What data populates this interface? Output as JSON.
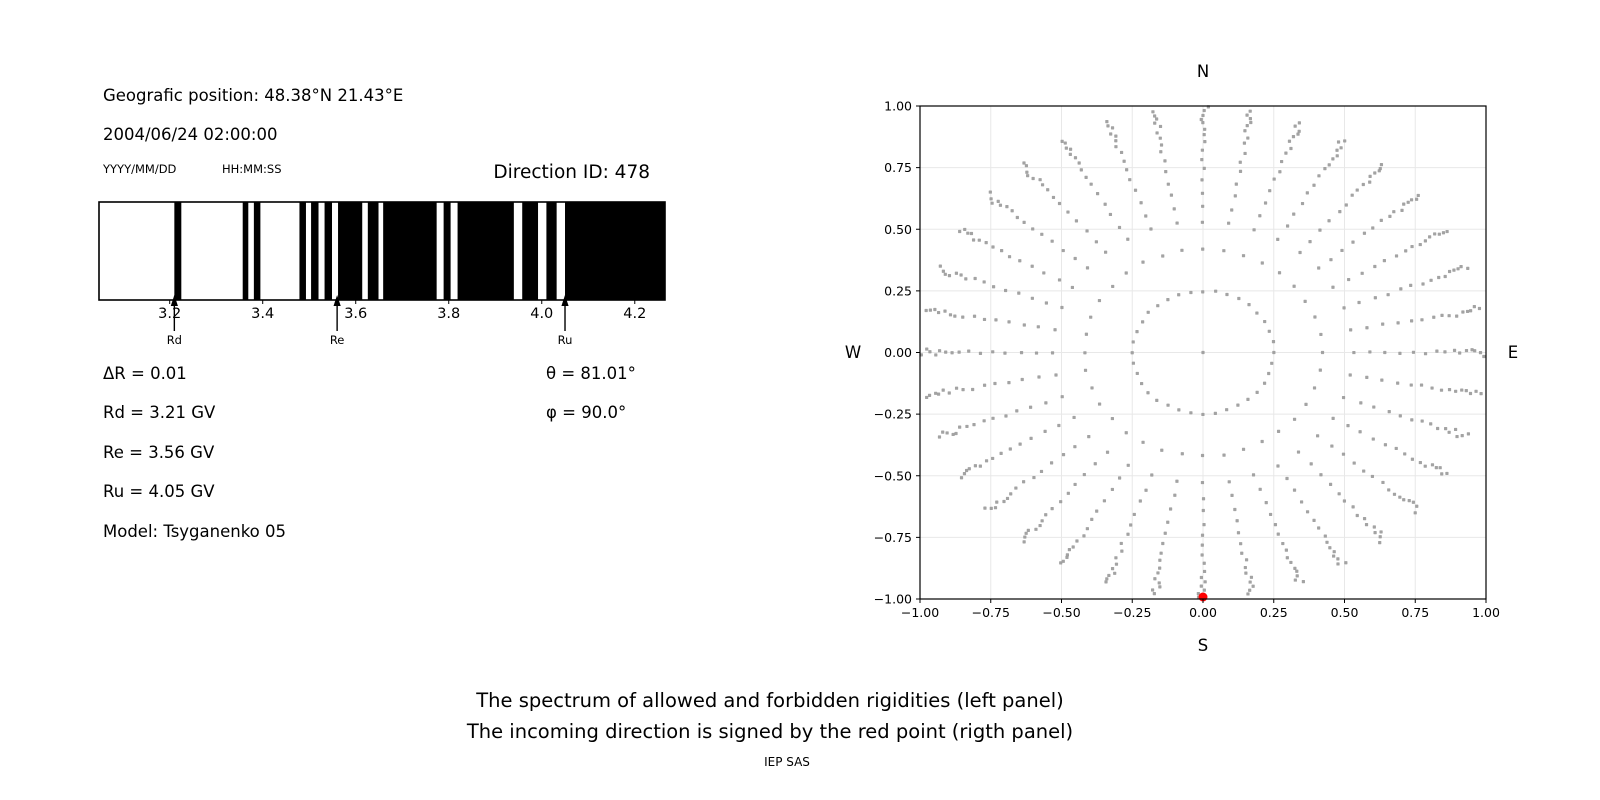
{
  "header": {
    "geographic_position": "Geografic position: 48.38°N 21.43°E",
    "datetime": "2004/06/24 02:00:00",
    "date_format": "YYYY/MM/DD",
    "time_format": "HH:MM:SS",
    "direction_id": "Direction ID: 478"
  },
  "values": {
    "delta_r": "ΔR = 0.01",
    "rd": "Rd = 3.21 GV",
    "re": "Re = 3.56 GV",
    "ru": "Ru = 4.05 GV",
    "model": "Model: Tsyganenko 05",
    "theta": "θ = 81.01°",
    "phi": "φ = 90.0°"
  },
  "caption": {
    "line1": "The spectrum of allowed and forbidden rigidities (left panel)",
    "line2": "The incoming direction is signed by the red point (rigth panel)",
    "credit": "IEP SAS"
  },
  "chart_data": [
    {
      "type": "bar",
      "name": "rigidity_spectrum",
      "description": "Penumbra barcode: black bands are forbidden rigidities, white allowed",
      "xlim": [
        3.048,
        4.265
      ],
      "xticks": [
        3.2,
        3.4,
        3.6,
        3.8,
        4.0,
        4.2
      ],
      "xtick_labels": [
        "3.2",
        "3.4",
        "3.6",
        "3.8",
        "4.0",
        "4.2"
      ],
      "forbidden_bands_GV": [
        [
          3.21,
          3.225
        ],
        [
          3.357,
          3.369
        ],
        [
          3.381,
          3.395
        ],
        [
          3.479,
          3.493
        ],
        [
          3.504,
          3.52
        ],
        [
          3.533,
          3.549
        ],
        [
          3.562,
          3.614
        ],
        [
          3.626,
          3.649
        ],
        [
          3.659,
          3.774
        ],
        [
          3.789,
          3.804
        ],
        [
          3.819,
          3.94
        ],
        [
          3.958,
          3.992
        ],
        [
          4.01,
          4.032
        ],
        [
          4.05,
          4.265
        ]
      ],
      "bar_color": "#000000",
      "markers": [
        {
          "label": "Rd",
          "value": 3.21
        },
        {
          "label": "Re",
          "value": 3.56
        },
        {
          "label": "Ru",
          "value": 4.05
        }
      ]
    },
    {
      "type": "scatter",
      "name": "incoming_directions",
      "description": "Grid of incoming directions; red point marks the selected direction",
      "xlim": [
        -1,
        1
      ],
      "ylim": [
        -1,
        1
      ],
      "xticks": [
        -1,
        -0.75,
        -0.5,
        -0.25,
        0,
        0.25,
        0.5,
        0.75,
        1
      ],
      "xtick_labels": [
        "−1.00",
        "−0.75",
        "−0.50",
        "−0.25",
        "0.00",
        "0.25",
        "0.50",
        "0.75",
        "1.00"
      ],
      "yticks": [
        1,
        0.75,
        0.5,
        0.25,
        0,
        -0.25,
        -0.5,
        -0.75,
        -1
      ],
      "ytick_labels": [
        "1.00",
        "0.75",
        "0.50",
        "0.25",
        "0.00",
        "−0.25",
        "−0.50",
        "−0.75",
        "−1.00"
      ],
      "compass": {
        "n": "N",
        "s": "S",
        "w": "W",
        "e": "E"
      },
      "azimuth_step_deg": 10,
      "spoke_radii": [
        0.25,
        0.42,
        0.53,
        0.59,
        0.645,
        0.697,
        0.745,
        0.785,
        0.824,
        0.858,
        0.886,
        0.909,
        0.93,
        0.947,
        0.963,
        0.978,
        0.993
      ],
      "center_dot": [
        0,
        0
      ],
      "red_point": [
        0,
        -1
      ],
      "dot_color": "#999999",
      "red_color": "#ff0000",
      "grid": true,
      "grid_color": "#e8e8e8"
    }
  ]
}
